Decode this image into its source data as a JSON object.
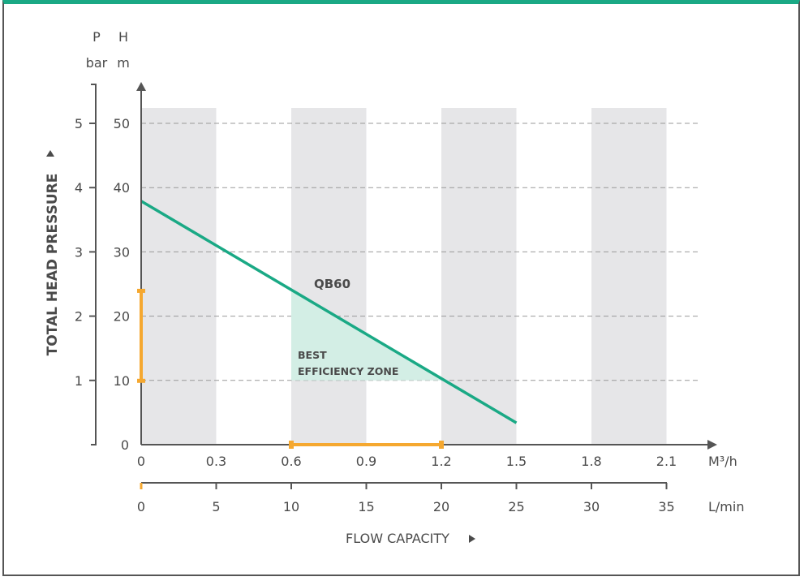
{
  "chart_data": {
    "type": "line",
    "series": [
      {
        "name": "QB60",
        "x": [
          0,
          1.5
        ],
        "y": [
          37.9,
          3.4
        ]
      }
    ],
    "xlabel": "FLOW CAPACITY",
    "ylabel": "TOTAL HEAD PRESSURE",
    "x_unit": "M³/h",
    "x2_unit": "L/min",
    "y_unit_h": "m",
    "y_unit_p": "bar",
    "y_label_h": "H",
    "y_label_p": "P",
    "x_ticks": [
      "0",
      "0.3",
      "0.6",
      "0.9",
      "1.2",
      "1.5",
      "1.8",
      "2.1"
    ],
    "x_tick_values": [
      0,
      0.3,
      0.6,
      0.9,
      1.2,
      1.5,
      1.8,
      2.1
    ],
    "x2_ticks": [
      "0",
      "5",
      "10",
      "15",
      "20",
      "25",
      "30",
      "35"
    ],
    "y_ticks": [
      "0",
      "10",
      "20",
      "30",
      "40",
      "50"
    ],
    "y_tick_values": [
      0,
      10,
      20,
      30,
      40,
      50
    ],
    "y2_ticks": [
      "1",
      "2",
      "3",
      "4",
      "5"
    ],
    "xlim": [
      0,
      2.1
    ],
    "ylim": [
      0,
      52
    ],
    "grid": "horizontal dashed",
    "shaded_bands": [
      [
        0,
        0.3
      ],
      [
        0.6,
        0.9
      ],
      [
        1.2,
        1.5
      ],
      [
        1.8,
        2.1
      ]
    ],
    "efficiency_zone": {
      "label_line1": "BEST",
      "label_line2": "EFFICIENCY ZONE",
      "flow_range": [
        0.6,
        1.2
      ],
      "head_range": [
        10,
        24
      ]
    },
    "colors": {
      "curve": "#1aa985",
      "zone": "#d3eee5",
      "band": "#e6e6e8",
      "marker": "#f5a830",
      "axis": "#555555"
    }
  }
}
